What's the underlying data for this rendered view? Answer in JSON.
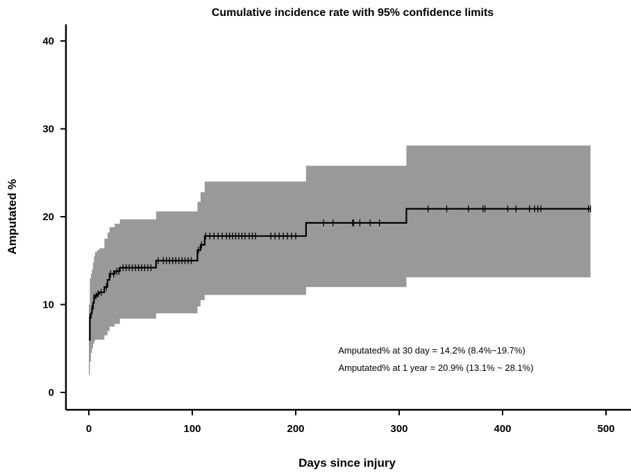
{
  "chart_data": {
    "type": "line",
    "title": "Cumulative incidence rate with 95% confidence limits",
    "xlabel": "Days since injury",
    "ylabel": "Amputated %",
    "xlim": [
      -10,
      520
    ],
    "ylim": [
      -2,
      42
    ],
    "xticks": [
      0,
      100,
      200,
      300,
      400,
      500
    ],
    "yticks": [
      0,
      10,
      20,
      30,
      40
    ],
    "colors": {
      "line": "#000000",
      "band": "#999999"
    },
    "series": [
      {
        "type": "step",
        "x": [
          0,
          1,
          2,
          3,
          4,
          5,
          6,
          8,
          10,
          15,
          18,
          20,
          25,
          30,
          62,
          65,
          103,
          105,
          108,
          112,
          206,
          210,
          307,
          485
        ],
        "y": [
          6.0,
          8.5,
          9.0,
          9.5,
          10.2,
          10.8,
          11.0,
          11.2,
          11.4,
          12.0,
          12.8,
          13.5,
          13.8,
          14.2,
          14.2,
          15.0,
          15.0,
          16.2,
          16.8,
          17.8,
          17.8,
          19.3,
          20.9,
          20.9
        ]
      }
    ],
    "confidence_band": {
      "x": [
        0,
        1,
        2,
        3,
        4,
        5,
        6,
        8,
        10,
        15,
        18,
        20,
        25,
        30,
        62,
        65,
        103,
        105,
        108,
        112,
        206,
        210,
        307,
        485
      ],
      "lower": [
        2.0,
        3.5,
        4.5,
        5.0,
        5.5,
        5.8,
        6.0,
        6.0,
        6.0,
        6.5,
        7.0,
        7.5,
        7.8,
        8.4,
        8.4,
        9.0,
        9.0,
        9.8,
        10.5,
        11.1,
        11.1,
        12.0,
        13.1,
        13.1
      ],
      "upper": [
        10.0,
        13.0,
        13.5,
        14.0,
        14.8,
        15.5,
        16.0,
        16.2,
        16.4,
        17.5,
        18.2,
        18.8,
        19.2,
        19.7,
        19.7,
        20.6,
        20.6,
        21.7,
        22.8,
        24.0,
        24.0,
        25.8,
        28.1,
        28.1
      ]
    },
    "censored": {
      "x": [
        1,
        3,
        5,
        7,
        9,
        12,
        17,
        21,
        24,
        27,
        29,
        33,
        36,
        39,
        42,
        45,
        48,
        51,
        54,
        57,
        60,
        67,
        72,
        75,
        78,
        81,
        84,
        87,
        90,
        93,
        96,
        99,
        106,
        109,
        113,
        117,
        121,
        125,
        129,
        133,
        136,
        139,
        142,
        145,
        148,
        151,
        155,
        158,
        161,
        176,
        180,
        184,
        188,
        192,
        196,
        200,
        227,
        236,
        255,
        256,
        262,
        272,
        281,
        328,
        346,
        367,
        381,
        383,
        405,
        413,
        426,
        431,
        434,
        437,
        483,
        485
      ],
      "y": [
        8.5,
        9.5,
        10.8,
        11.0,
        11.2,
        11.4,
        12.0,
        13.5,
        13.5,
        13.8,
        13.8,
        14.2,
        14.2,
        14.2,
        14.2,
        14.2,
        14.2,
        14.2,
        14.2,
        14.2,
        14.2,
        15.0,
        15.0,
        15.0,
        15.0,
        15.0,
        15.0,
        15.0,
        15.0,
        15.0,
        15.0,
        15.0,
        16.2,
        16.8,
        17.8,
        17.8,
        17.8,
        17.8,
        17.8,
        17.8,
        17.8,
        17.8,
        17.8,
        17.8,
        17.8,
        17.8,
        17.8,
        17.8,
        17.8,
        17.8,
        17.8,
        17.8,
        17.8,
        17.8,
        17.8,
        17.8,
        19.3,
        19.3,
        19.3,
        19.3,
        19.3,
        19.3,
        19.3,
        20.9,
        20.9,
        20.9,
        20.9,
        20.9,
        20.9,
        20.9,
        20.9,
        20.9,
        20.9,
        20.9,
        20.9,
        20.9
      ]
    },
    "annotations": [
      "Amputated% at 30 day = 14.2% (8.4%~19.7%)",
      "Amputated% at 1 year = 20.9% (13.1% ~ 28.1%)"
    ]
  }
}
